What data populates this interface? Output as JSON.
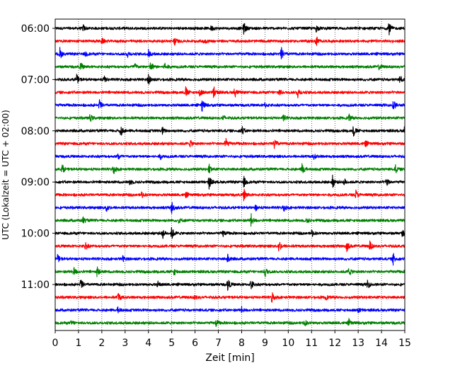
{
  "chart_data": {
    "type": "line",
    "title": "",
    "xlabel": "Zeit  [min]",
    "ylabel": "UTC (Lokalzeit = UTC + 02:00)",
    "xlim": [
      0,
      15
    ],
    "x_ticks": [
      "0",
      "1",
      "2",
      "3",
      "4",
      "5",
      "6",
      "7",
      "8",
      "9",
      "10",
      "11",
      "12",
      "13",
      "14",
      "15"
    ],
    "vertical_grid": true,
    "trace_interval_minutes": 15,
    "trace_count": 24,
    "first_trace_time": "06:00",
    "y_tick_labels": [
      {
        "label": "06:00",
        "trace_index": 0
      },
      {
        "label": "07:00",
        "trace_index": 4
      },
      {
        "label": "08:00",
        "trace_index": 8
      },
      {
        "label": "09:00",
        "trace_index": 12
      },
      {
        "label": "10:00",
        "trace_index": 16
      },
      {
        "label": "11:00",
        "trace_index": 20
      }
    ],
    "series_colors": [
      "#000000",
      "#ff0000",
      "#0000ff",
      "#008000"
    ],
    "events": [
      [
        [
          8.1,
          1.0
        ],
        [
          14.3,
          1.3
        ],
        [
          1.2,
          0.5
        ],
        [
          11.2,
          0.5
        ],
        [
          6.7,
          0.4
        ]
      ],
      [
        [
          5.1,
          0.8
        ],
        [
          11.2,
          0.9
        ],
        [
          6.4,
          0.5
        ],
        [
          2.0,
          0.4
        ]
      ],
      [
        [
          0.2,
          0.9
        ],
        [
          9.7,
          1.0
        ],
        [
          4.0,
          0.6
        ],
        [
          3.1,
          0.5
        ],
        [
          1.3,
          0.4
        ]
      ],
      [
        [
          1.1,
          0.6
        ],
        [
          3.4,
          0.7
        ],
        [
          4.1,
          0.9
        ],
        [
          4.7,
          0.7
        ],
        [
          13.9,
          0.4
        ]
      ],
      [
        [
          0.9,
          1.0
        ],
        [
          4.0,
          0.9
        ],
        [
          14.8,
          0.6
        ],
        [
          2.1,
          0.5
        ]
      ],
      [
        [
          5.6,
          0.8
        ],
        [
          6.2,
          0.7
        ],
        [
          6.8,
          1.0
        ],
        [
          7.7,
          0.8
        ],
        [
          10.4,
          0.9
        ],
        [
          9.6,
          0.6
        ]
      ],
      [
        [
          1.9,
          0.8
        ],
        [
          6.3,
          1.0
        ],
        [
          14.5,
          0.9
        ],
        [
          9.0,
          0.4
        ]
      ],
      [
        [
          1.5,
          0.6
        ],
        [
          9.8,
          0.5
        ],
        [
          12.6,
          0.5
        ],
        [
          7.2,
          0.4
        ]
      ],
      [
        [
          2.8,
          1.0
        ],
        [
          8.0,
          0.8
        ],
        [
          12.8,
          0.9
        ],
        [
          15.0,
          1.0
        ],
        [
          4.6,
          0.5
        ]
      ],
      [
        [
          7.3,
          1.0
        ],
        [
          9.4,
          0.9
        ],
        [
          5.8,
          0.5
        ],
        [
          13.3,
          0.5
        ]
      ],
      [
        [
          2.7,
          0.5
        ],
        [
          11.1,
          0.4
        ],
        [
          4.5,
          0.4
        ]
      ],
      [
        [
          0.3,
          0.7
        ],
        [
          2.5,
          0.8
        ],
        [
          6.6,
          0.8
        ],
        [
          10.6,
          1.0
        ],
        [
          14.6,
          0.6
        ]
      ],
      [
        [
          6.6,
          1.0
        ],
        [
          8.1,
          0.8
        ],
        [
          11.9,
          0.9
        ],
        [
          14.2,
          0.9
        ],
        [
          3.2,
          0.5
        ],
        [
          12.4,
          0.6
        ]
      ],
      [
        [
          8.1,
          1.0
        ],
        [
          12.9,
          0.7
        ],
        [
          3.7,
          0.5
        ],
        [
          5.6,
          0.4
        ]
      ],
      [
        [
          2.2,
          0.7
        ],
        [
          5.0,
          1.0
        ],
        [
          9.8,
          0.6
        ],
        [
          8.6,
          0.5
        ]
      ],
      [
        [
          8.4,
          1.0
        ],
        [
          1.2,
          0.5
        ],
        [
          5.3,
          0.4
        ],
        [
          10.8,
          0.4
        ]
      ],
      [
        [
          4.6,
          0.9
        ],
        [
          5.0,
          1.0
        ],
        [
          11.0,
          0.6
        ],
        [
          14.9,
          0.5
        ],
        [
          7.2,
          0.5
        ]
      ],
      [
        [
          1.3,
          0.6
        ],
        [
          9.6,
          1.0
        ],
        [
          12.5,
          0.9
        ],
        [
          13.5,
          0.7
        ]
      ],
      [
        [
          0.1,
          0.6
        ],
        [
          7.4,
          0.7
        ],
        [
          14.5,
          0.9
        ],
        [
          2.9,
          0.4
        ]
      ],
      [
        [
          0.8,
          0.7
        ],
        [
          1.8,
          0.8
        ],
        [
          9.0,
          0.9
        ],
        [
          12.6,
          0.7
        ],
        [
          5.1,
          0.5
        ]
      ],
      [
        [
          1.1,
          0.9
        ],
        [
          7.4,
          1.0
        ],
        [
          8.4,
          0.8
        ],
        [
          13.4,
          0.7
        ],
        [
          4.4,
          0.4
        ]
      ],
      [
        [
          2.7,
          0.8
        ],
        [
          9.3,
          0.9
        ],
        [
          6.0,
          0.4
        ],
        [
          11.6,
          0.4
        ]
      ],
      [
        [
          2.7,
          0.5
        ],
        [
          8.0,
          0.4
        ],
        [
          13.0,
          0.4
        ]
      ],
      [
        [
          0.7,
          0.4
        ],
        [
          6.9,
          0.5
        ],
        [
          10.7,
          0.5
        ],
        [
          12.6,
          0.5
        ]
      ]
    ]
  }
}
